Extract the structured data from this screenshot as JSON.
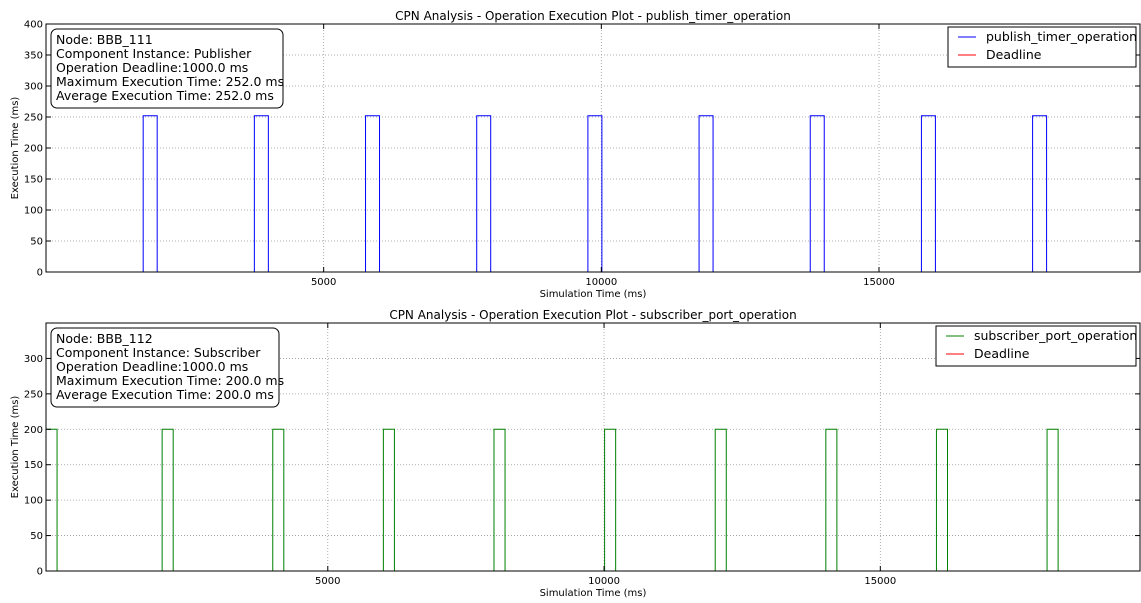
{
  "chart_data": [
    {
      "type": "line",
      "title": "CPN Analysis - Operation Execution Plot - publish_timer_operation",
      "xlabel": "Simulation Time (ms)",
      "ylabel": "Execution Time (ms)",
      "xlim": [
        0,
        19700
      ],
      "ylim": [
        0,
        400
      ],
      "xticks": [
        5000,
        10000,
        15000
      ],
      "yticks": [
        0,
        50,
        100,
        150,
        200,
        250,
        300,
        350,
        400
      ],
      "grid": true,
      "legend_position": "top-right",
      "info_box": [
        "Node: BBB_111",
        "Component Instance: Publisher",
        "Operation Deadline:1000.0 ms",
        "Maximum Execution Time: 252.0 ms",
        "Average Execution Time: 252.0 ms"
      ],
      "series": [
        {
          "name": "publish_timer_operation",
          "color": "#0000ff",
          "pulse_height": 252,
          "pulses": [
            [
              1750,
              2002
            ],
            [
              3752,
              4004
            ],
            [
              5754,
              6006
            ],
            [
              7756,
              8008
            ],
            [
              9758,
              10010
            ],
            [
              11760,
              12012
            ],
            [
              13762,
              14014
            ],
            [
              15764,
              16016
            ],
            [
              17766,
              18018
            ]
          ]
        },
        {
          "name": "Deadline",
          "color": "#ff0000"
        }
      ]
    },
    {
      "type": "line",
      "title": "CPN Analysis - Operation Execution Plot - subscriber_port_operation",
      "xlabel": "Simulation Time (ms)",
      "ylabel": "Execution Time (ms)",
      "xlim": [
        -100,
        19700
      ],
      "ylim": [
        0,
        350
      ],
      "xticks": [
        5000,
        10000,
        15000
      ],
      "yticks": [
        0,
        50,
        100,
        150,
        200,
        250,
        300
      ],
      "grid": true,
      "legend_position": "top-right",
      "info_box": [
        "Node: BBB_112",
        "Component Instance: Subscriber",
        "Operation Deadline:1000.0 ms",
        "Maximum Execution Time: 200.0 ms",
        "Average Execution Time: 200.0 ms"
      ],
      "series": [
        {
          "name": "subscriber_port_operation",
          "color": "#008000",
          "pulse_height": 200,
          "pulses": [
            [
              -100,
              100
            ],
            [
              2002,
              2202
            ],
            [
              4004,
              4204
            ],
            [
              6006,
              6206
            ],
            [
              8008,
              8208
            ],
            [
              10010,
              10210
            ],
            [
              12012,
              12212
            ],
            [
              14014,
              14214
            ],
            [
              16016,
              16216
            ],
            [
              18018,
              18218
            ]
          ]
        },
        {
          "name": "Deadline",
          "color": "#ff0000"
        }
      ]
    }
  ]
}
